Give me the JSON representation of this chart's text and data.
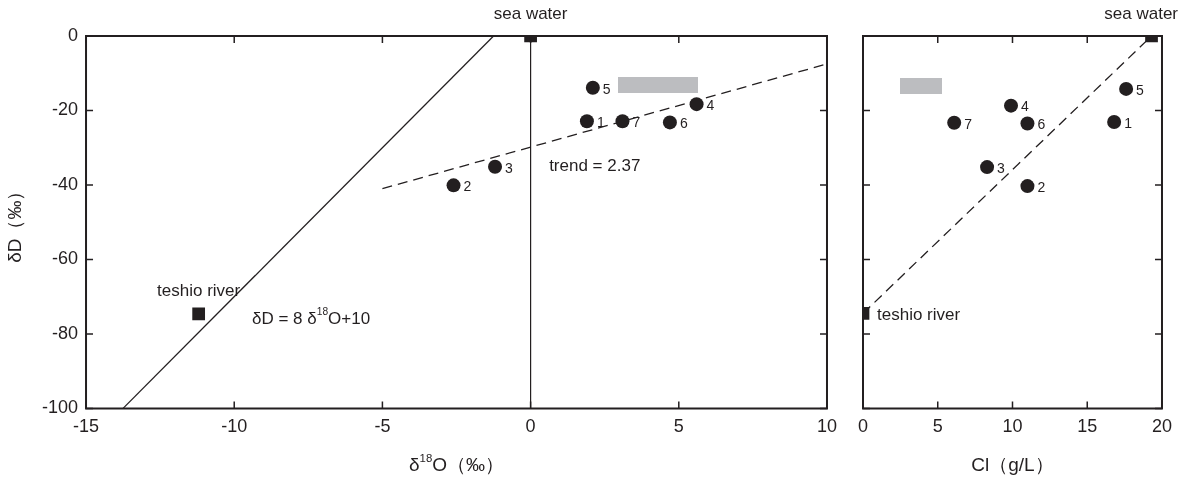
{
  "chart_data": [
    {
      "type": "scatter",
      "xlabel": "δ$^{18}$O（‰）",
      "ylabel": "δD（‰）",
      "xlim": [
        -15,
        10
      ],
      "ylim": [
        -100,
        0
      ],
      "xticks": [
        -15,
        -10,
        -5,
        0,
        5,
        10
      ],
      "yticks": [
        -100,
        -80,
        -60,
        -40,
        -20,
        0
      ],
      "grid": false,
      "legend": false,
      "ref_lines": [
        {
          "axis": "x",
          "value": 0,
          "line_style": "solid"
        }
      ],
      "series": [
        {
          "type": "scatter",
          "marker": "circle",
          "color": "#231f20",
          "x": [
            1.9,
            -2.6,
            -1.2,
            5.6,
            2.1,
            4.7,
            3.1
          ],
          "values": [
            -22.9,
            -40.1,
            -35.1,
            -18.3,
            -13.9,
            -23.2,
            -22.9
          ]
        },
        {
          "type": "scatter",
          "marker": "square",
          "color": "#231f20",
          "x": [
            0,
            -11.2
          ],
          "values": [
            0,
            -74.6
          ]
        },
        {
          "type": "line",
          "marker": "none",
          "line_style": "solid",
          "color": "#231f20",
          "x": [
            -13.75,
            -1.25
          ],
          "values": [
            -100,
            0
          ]
        },
        {
          "type": "line",
          "marker": "none",
          "line_style": "dashed",
          "color": "#231f20",
          "x": [
            -5,
            10
          ],
          "values": [
            -41,
            -7.5
          ]
        }
      ],
      "annotations": [
        {
          "text": "1",
          "x": 1.9,
          "y": -22.9
        },
        {
          "text": "2",
          "x": -2.6,
          "y": -40.1
        },
        {
          "text": "3",
          "x": -1.2,
          "y": -35.1
        },
        {
          "text": "4",
          "x": 5.6,
          "y": -18.3
        },
        {
          "text": "5",
          "x": 2.1,
          "y": -13.9
        },
        {
          "text": "6",
          "x": 4.7,
          "y": -23.2
        },
        {
          "text": "7",
          "x": 3.1,
          "y": -22.9
        },
        {
          "text": "sea water",
          "x": 0,
          "y": 0
        },
        {
          "text": "teshio river",
          "x": -11.2,
          "y": -74.6
        },
        "δD = 8 δ$^{18}$O+10",
        "trend = 2.37"
      ]
    },
    {
      "type": "scatter",
      "xlabel": "Cl（g/L）",
      "xlim": [
        0,
        20
      ],
      "ylim": [
        -100,
        0
      ],
      "xticks": [
        0,
        5,
        10,
        15,
        20
      ],
      "yticks": [
        -100,
        -80,
        -60,
        -40,
        -20,
        0
      ],
      "tick_labels": "x",
      "grid": false,
      "legend": false,
      "series": [
        {
          "type": "scatter",
          "marker": "circle",
          "color": "#231f20",
          "x": [
            16.8,
            11.0,
            8.3,
            9.9,
            17.6,
            11.0,
            6.1
          ],
          "values": [
            -23.1,
            -40.3,
            -35.2,
            -18.7,
            -14.2,
            -23.5,
            -23.3
          ]
        },
        {
          "type": "scatter",
          "marker": "square",
          "color": "#231f20",
          "x": [
            19.3,
            0
          ],
          "values": [
            0,
            -74.5
          ]
        },
        {
          "type": "line",
          "marker": "none",
          "line_style": "dashed",
          "color": "#231f20",
          "x": [
            0,
            19.3
          ],
          "values": [
            -74.5,
            0
          ]
        }
      ],
      "annotations": [
        {
          "text": "1",
          "x": 16.8,
          "y": -23.1
        },
        {
          "text": "2",
          "x": 11.0,
          "y": -40.3
        },
        {
          "text": "3",
          "x": 8.3,
          "y": -35.2
        },
        {
          "text": "4",
          "x": 9.9,
          "y": -18.7
        },
        {
          "text": "5",
          "x": 17.6,
          "y": -14.2
        },
        {
          "text": "6",
          "x": 11.0,
          "y": -23.5
        },
        {
          "text": "7",
          "x": 6.1,
          "y": -23.3
        },
        {
          "text": "sea water",
          "x": 19.3,
          "y": 0
        },
        {
          "text": "teshio river",
          "x": 0,
          "y": -74.5
        }
      ]
    }
  ]
}
